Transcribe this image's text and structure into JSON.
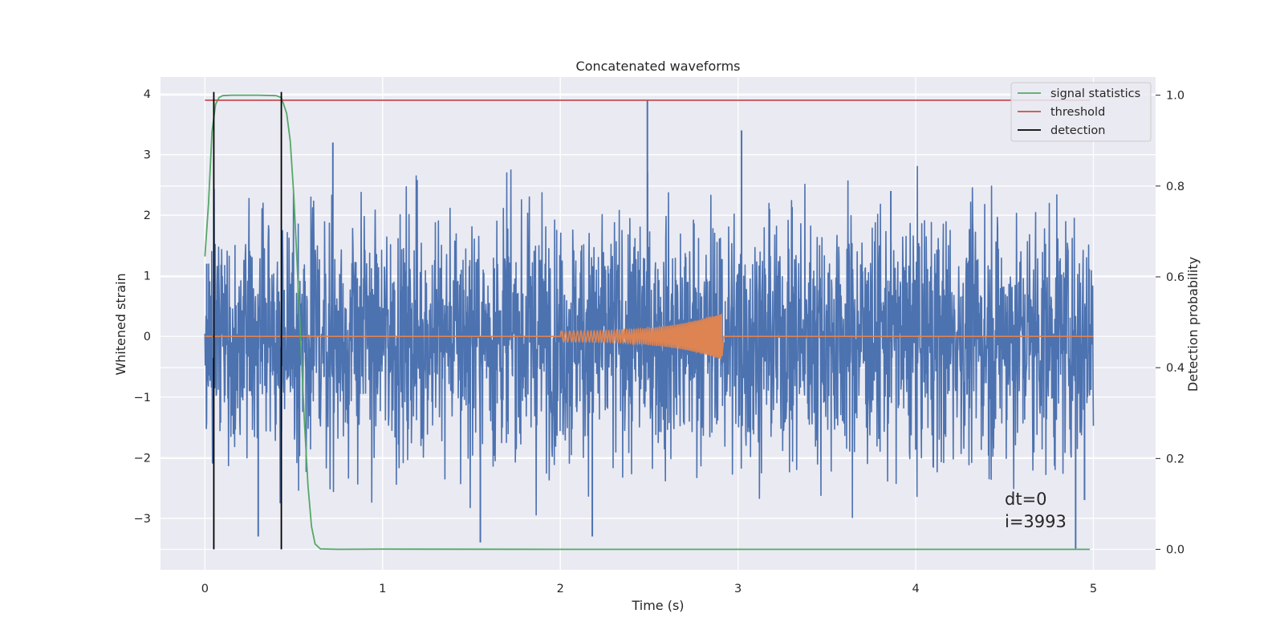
{
  "chart_data": {
    "type": "line",
    "title": "Concatenated waveforms",
    "xlabel": "Time (s)",
    "ylabel": "Whitened strain",
    "y2label": "Detection probability",
    "xlim": [
      -0.25,
      5.35
    ],
    "ylim": [
      -3.85,
      4.28
    ],
    "y2lim": [
      -0.045,
      1.04
    ],
    "xticks": [
      0,
      1,
      2,
      3,
      4,
      5
    ],
    "xtick_labels": [
      "0",
      "1",
      "2",
      "3",
      "4",
      "5"
    ],
    "yticks": [
      -3,
      -2,
      -1,
      0,
      1,
      2,
      3,
      4
    ],
    "ytick_labels": [
      "−3",
      "−2",
      "−1",
      "0",
      "1",
      "2",
      "3",
      "4"
    ],
    "y2ticks": [
      0.0,
      0.2,
      0.4,
      0.6,
      0.8,
      1.0
    ],
    "y2tick_labels": [
      "0.0",
      "0.2",
      "0.4",
      "0.6",
      "0.8",
      "1.0"
    ],
    "grid": true,
    "legend_position": "top-right",
    "annotations": [
      "dt=0",
      "i=3993"
    ],
    "series": [
      {
        "name": "",
        "axis": "left",
        "color": "#4c72b0",
        "kind": "noise",
        "x_range": [
          0,
          5
        ],
        "sigma": 1.0,
        "x": [
          0.01,
          0.3,
          0.72,
          1.55,
          2.18,
          2.49,
          3.02,
          3.86,
          4.9,
          4.95
        ],
        "y": [
          1.2,
          -3.3,
          3.2,
          -3.4,
          -3.3,
          3.9,
          3.4,
          2.4,
          -3.5,
          -2.7
        ]
      },
      {
        "name": "",
        "axis": "left",
        "color": "#dd8452",
        "kind": "chirp",
        "x_range": [
          0,
          5
        ],
        "chirp_start": 2.0,
        "chirp_end": 2.91,
        "amp_start": 0.09,
        "amp_peak": 0.38
      },
      {
        "name": "signal statistics",
        "axis": "right",
        "color": "#55a868",
        "x": [
          0.0,
          0.02,
          0.04,
          0.06,
          0.08,
          0.1,
          0.15,
          0.3,
          0.4,
          0.43,
          0.46,
          0.48,
          0.5,
          0.52,
          0.54,
          0.56,
          0.58,
          0.6,
          0.62,
          0.65,
          0.75,
          1.0,
          2.0,
          3.0,
          4.0,
          4.98
        ],
        "y": [
          0.645,
          0.76,
          0.92,
          0.98,
          0.995,
          0.999,
          1.0,
          1.0,
          0.999,
          0.995,
          0.96,
          0.9,
          0.78,
          0.62,
          0.45,
          0.28,
          0.14,
          0.05,
          0.012,
          0.001,
          0.0,
          0.0005,
          0.0,
          0.0,
          0.0,
          0.0
        ]
      },
      {
        "name": "threshold",
        "axis": "right",
        "color": "#c44e52",
        "x": [
          0.0,
          4.98
        ],
        "y": [
          0.989,
          0.989
        ]
      },
      {
        "name": "detection",
        "axis": "right",
        "color": "#000000",
        "kind": "vlines",
        "x": [
          0.05,
          0.43
        ],
        "y_range": [
          0.0,
          1.0
        ]
      }
    ]
  }
}
